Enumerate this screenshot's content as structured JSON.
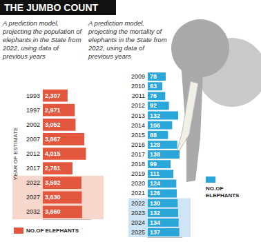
{
  "title": "THE JUMBO COUNT",
  "chart_data": [
    {
      "type": "bar",
      "orientation": "horizontal",
      "title": "A prediction model, projecting the population of elephants in the State from 2022, using data of previous years",
      "ylabel": "YEAR OF ESTIMATE",
      "categories": [
        "1993",
        "1997",
        "2002",
        "2007",
        "2012",
        "2017",
        "2022",
        "2027",
        "2032"
      ],
      "series": [
        {
          "name": "NO.OF ELEPHANTS",
          "color": "#e4573f",
          "values": [
            2307,
            2971,
            3052,
            3867,
            4015,
            2761,
            3592,
            3630,
            3660
          ],
          "value_labels": [
            "2,307",
            "2,971",
            "3,052",
            "3,867",
            "4,015",
            "2,761",
            "3,592",
            "3,630",
            "3,660"
          ]
        }
      ],
      "xlim": [
        0,
        4500
      ],
      "data_labels": true,
      "tick_labels": "y",
      "legend": "bottom",
      "highlight": {
        "from": "2022",
        "to": "2032",
        "color": "#f7d7cc"
      }
    },
    {
      "type": "bar",
      "orientation": "horizontal",
      "title": "A prediction model, projecting the mortality of elephants in the State from 2022, using data of previous years",
      "categories": [
        "2009",
        "2010",
        "2011",
        "2012",
        "2013",
        "2014",
        "2015",
        "2016",
        "2017",
        "2018",
        "2019",
        "2020",
        "2021",
        "2022",
        "2023",
        "2024",
        "2025"
      ],
      "series": [
        {
          "name": "NO.OF ELEPHANTS",
          "color": "#2ba6d8",
          "values": [
            78,
            63,
            76,
            92,
            132,
            106,
            88,
            128,
            138,
            99,
            111,
            124,
            126,
            130,
            132,
            134,
            137
          ]
        }
      ],
      "xlim": [
        0,
        150
      ],
      "data_labels": true,
      "tick_labels": "y",
      "legend": "right",
      "highlight": {
        "from": "2022",
        "to": "2025",
        "color": "#cfe4f4"
      }
    }
  ]
}
